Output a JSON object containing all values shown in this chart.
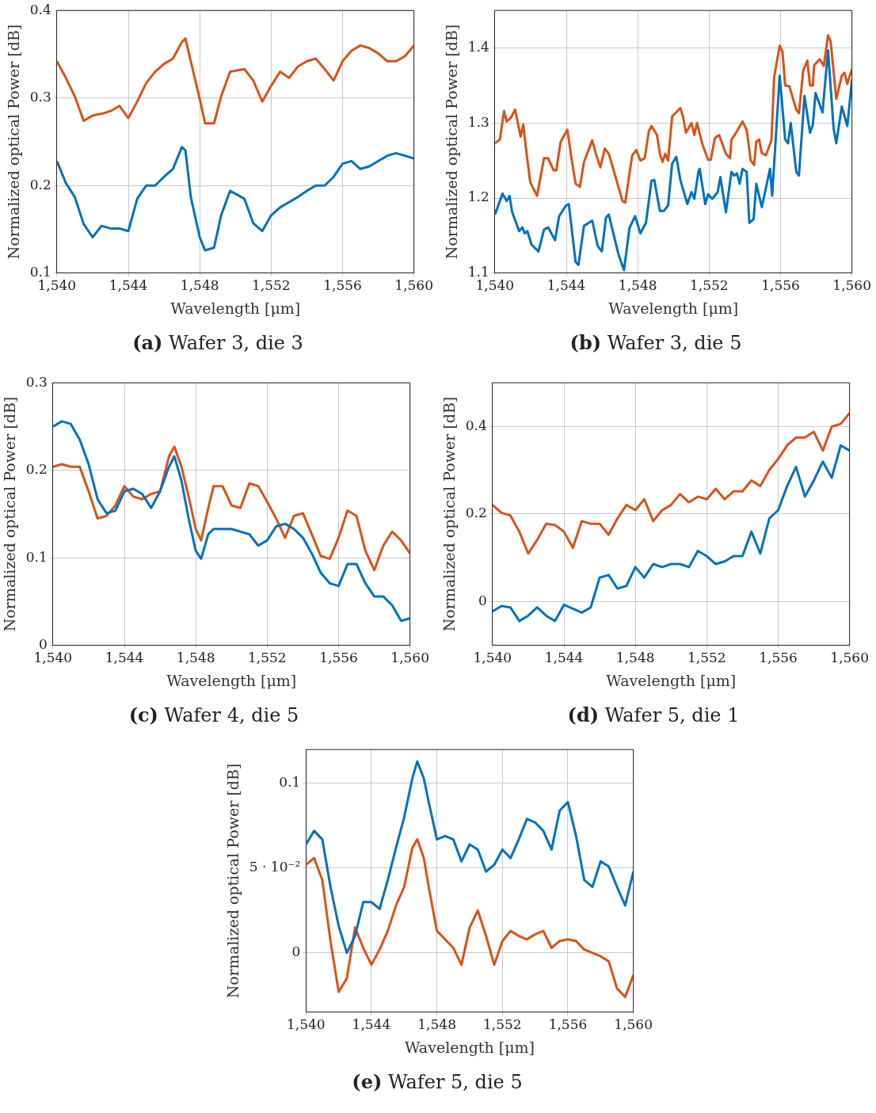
{
  "chart_data": [
    {
      "type": "line",
      "title": "(a) Wafer 3, die 3",
      "xlabel": "Wavelength [μm]",
      "ylabel": "Normalized optical Power [dB]",
      "grid": true,
      "x": [
        1540,
        1540.5,
        1541,
        1541.5,
        1542,
        1542.5,
        1543,
        1543.5,
        1544,
        1544.5,
        1545,
        1545.5,
        1546,
        1546.5,
        1547,
        1547.2,
        1547.5,
        1548,
        1548.3,
        1548.8,
        1549.2,
        1549.7,
        1550.5,
        1551,
        1551.5,
        1552,
        1552.5,
        1553,
        1553.5,
        1554,
        1554.5,
        1555,
        1555.5,
        1556,
        1556.5,
        1557,
        1557.5,
        1558,
        1558.5,
        1559,
        1559.5,
        1560
      ],
      "xlim": [
        1540,
        1560
      ],
      "xticks": [
        {
          "value": 1540,
          "label": "1,540"
        },
        {
          "value": 1544,
          "label": "1,544"
        },
        {
          "value": 1548,
          "label": "1,548"
        },
        {
          "value": 1552,
          "label": "1,552"
        },
        {
          "value": 1556,
          "label": "1,556"
        },
        {
          "value": 1560,
          "label": "1,560"
        }
      ],
      "ylim": [
        0.1,
        0.4
      ],
      "yticks": [
        0.1,
        0.2,
        0.3,
        0.4
      ],
      "series": [
        {
          "color": "#d95319",
          "values": [
            0.342,
            0.323,
            0.302,
            0.274,
            0.28,
            0.282,
            0.285,
            0.291,
            0.277,
            0.296,
            0.317,
            0.33,
            0.339,
            0.345,
            0.364,
            0.368,
            0.342,
            0.299,
            0.271,
            0.271,
            0.302,
            0.33,
            0.333,
            0.32,
            0.296,
            0.314,
            0.33,
            0.323,
            0.336,
            0.342,
            0.345,
            0.333,
            0.32,
            0.342,
            0.354,
            0.36,
            0.357,
            0.351,
            0.342,
            0.342,
            0.348,
            0.36
          ]
        },
        {
          "color": "#0072bd",
          "values": [
            0.228,
            0.203,
            0.187,
            0.156,
            0.141,
            0.154,
            0.151,
            0.151,
            0.148,
            0.185,
            0.2,
            0.2,
            0.21,
            0.219,
            0.244,
            0.24,
            0.187,
            0.141,
            0.126,
            0.129,
            0.166,
            0.194,
            0.185,
            0.157,
            0.148,
            0.166,
            0.175,
            0.181,
            0.187,
            0.194,
            0.2,
            0.2,
            0.21,
            0.225,
            0.228,
            0.219,
            0.222,
            0.228,
            0.234,
            0.237,
            0.234,
            0.231
          ]
        }
      ]
    },
    {
      "type": "line",
      "title": "(b) Wafer 3, die 5",
      "xlabel": "Wavelength [μm]",
      "ylabel": "Normalized optical Power [dB]",
      "grid": true,
      "xlim": [
        1540,
        1560
      ],
      "xticks": [
        {
          "value": 1540,
          "label": "1,540"
        },
        {
          "value": 1544,
          "label": "1,544"
        },
        {
          "value": 1548,
          "label": "1,548"
        },
        {
          "value": 1552,
          "label": "1,552"
        },
        {
          "value": 1556,
          "label": "1,556"
        },
        {
          "value": 1560,
          "label": "1,560"
        }
      ],
      "ylim": [
        1.1,
        1.45
      ],
      "yticks": [
        1.1,
        1.2,
        1.3,
        1.4
      ],
      "series": [
        {
          "color": "#d95319",
          "x": [
            1540,
            1540.28,
            1540.51,
            1540.66,
            1540.9,
            1541.13,
            1541.44,
            1541.59,
            1541.75,
            1541.98,
            1542.36,
            1542.75,
            1542.98,
            1543.29,
            1543.44,
            1543.68,
            1544.06,
            1544.29,
            1544.52,
            1544.76,
            1544.99,
            1545.45,
            1545.68,
            1545.91,
            1546.15,
            1546.38,
            1546.76,
            1547.15,
            1547.3,
            1547.69,
            1547.92,
            1548.15,
            1548.39,
            1548.62,
            1548.77,
            1549.08,
            1549.24,
            1549.39,
            1549.54,
            1549.7,
            1549.93,
            1550.39,
            1550.55,
            1550.7,
            1551.01,
            1551.17,
            1551.32,
            1551.63,
            1551.94,
            1552.09,
            1552.32,
            1552.56,
            1552.94,
            1553.17,
            1553.25,
            1553.48,
            1553.87,
            1554.1,
            1554.33,
            1554.52,
            1554.64,
            1554.8,
            1554.95,
            1555.18,
            1555.49,
            1555.64,
            1555.95,
            1556.11,
            1556.26,
            1556.49,
            1556.88,
            1557.03,
            1557.27,
            1557.5,
            1557.65,
            1557.81,
            1557.88,
            1558.19,
            1558.42,
            1558.66,
            1558.81,
            1559.12,
            1559.43,
            1559.58,
            1559.74,
            1560
          ],
          "values": [
            1.273,
            1.278,
            1.316,
            1.302,
            1.307,
            1.318,
            1.282,
            1.298,
            1.264,
            1.221,
            1.203,
            1.253,
            1.253,
            1.237,
            1.237,
            1.275,
            1.291,
            1.253,
            1.219,
            1.215,
            1.248,
            1.277,
            1.257,
            1.241,
            1.266,
            1.259,
            1.228,
            1.196,
            1.194,
            1.257,
            1.264,
            1.25,
            1.253,
            1.289,
            1.296,
            1.284,
            1.259,
            1.248,
            1.259,
            1.25,
            1.309,
            1.32,
            1.307,
            1.287,
            1.3,
            1.284,
            1.3,
            1.271,
            1.251,
            1.251,
            1.28,
            1.284,
            1.259,
            1.253,
            1.278,
            1.286,
            1.302,
            1.291,
            1.25,
            1.244,
            1.275,
            1.278,
            1.26,
            1.257,
            1.277,
            1.361,
            1.403,
            1.395,
            1.35,
            1.349,
            1.318,
            1.313,
            1.37,
            1.383,
            1.35,
            1.35,
            1.377,
            1.385,
            1.376,
            1.417,
            1.408,
            1.332,
            1.363,
            1.367,
            1.352,
            1.372
          ]
        },
        {
          "color": "#0072bd",
          "x": [
            1540,
            1540.43,
            1540.66,
            1540.82,
            1540.97,
            1541.36,
            1541.54,
            1541.67,
            1541.82,
            1542.05,
            1542.44,
            1542.75,
            1542.98,
            1543.37,
            1543.6,
            1543.98,
            1544.14,
            1544.52,
            1544.68,
            1544.99,
            1545.45,
            1545.76,
            1545.99,
            1546.22,
            1546.38,
            1546.92,
            1547.23,
            1547.54,
            1547.85,
            1548.15,
            1548.46,
            1548.77,
            1548.93,
            1549.24,
            1549.47,
            1549.7,
            1549.93,
            1550.16,
            1550.39,
            1550.78,
            1551.01,
            1551.17,
            1551.4,
            1551.47,
            1551.78,
            1551.94,
            1552.17,
            1552.48,
            1552.63,
            1552.94,
            1553.25,
            1553.4,
            1553.56,
            1553.71,
            1553.87,
            1554.1,
            1554.25,
            1554.49,
            1554.64,
            1554.95,
            1555.41,
            1555.53,
            1555.95,
            1556.26,
            1556.42,
            1556.57,
            1556.88,
            1557.03,
            1557.34,
            1557.65,
            1557.81,
            1557.96,
            1558.35,
            1558.66,
            1558.97,
            1559.12,
            1559.43,
            1559.74,
            1560
          ],
          "values": [
            1.178,
            1.206,
            1.196,
            1.203,
            1.181,
            1.156,
            1.161,
            1.153,
            1.156,
            1.138,
            1.129,
            1.158,
            1.161,
            1.144,
            1.176,
            1.19,
            1.192,
            1.115,
            1.111,
            1.163,
            1.17,
            1.136,
            1.129,
            1.174,
            1.178,
            1.125,
            1.104,
            1.16,
            1.176,
            1.153,
            1.167,
            1.223,
            1.224,
            1.183,
            1.183,
            1.19,
            1.246,
            1.255,
            1.224,
            1.192,
            1.208,
            1.199,
            1.235,
            1.239,
            1.192,
            1.205,
            1.199,
            1.208,
            1.228,
            1.181,
            1.235,
            1.23,
            1.233,
            1.219,
            1.239,
            1.235,
            1.167,
            1.172,
            1.219,
            1.188,
            1.239,
            1.203,
            1.363,
            1.278,
            1.273,
            1.3,
            1.235,
            1.23,
            1.336,
            1.287,
            1.298,
            1.34,
            1.314,
            1.397,
            1.293,
            1.273,
            1.322,
            1.296,
            1.358
          ]
        }
      ]
    },
    {
      "type": "line",
      "title": "(c) Wafer 4, die 5",
      "xlabel": "Wavelength [μm]",
      "ylabel": "Normalized optical Power [dB]",
      "grid": true,
      "x": [
        1540,
        1540.5,
        1541,
        1541.5,
        1542,
        1542.5,
        1543,
        1543.5,
        1544,
        1544.5,
        1545,
        1545.5,
        1546,
        1546.5,
        1546.8,
        1547.2,
        1547.6,
        1548,
        1548.3,
        1548.7,
        1549,
        1549.5,
        1550,
        1550.5,
        1551,
        1551.5,
        1552,
        1552.5,
        1553,
        1553.5,
        1554,
        1554.5,
        1555,
        1555.5,
        1556,
        1556.5,
        1557,
        1557.5,
        1558,
        1558.5,
        1559,
        1559.5,
        1560
      ],
      "xlim": [
        1540,
        1560
      ],
      "xticks": [
        {
          "value": 1540,
          "label": "1,540"
        },
        {
          "value": 1544,
          "label": "1,544"
        },
        {
          "value": 1548,
          "label": "1,548"
        },
        {
          "value": 1552,
          "label": "1,552"
        },
        {
          "value": 1556,
          "label": "1,556"
        },
        {
          "value": 1560,
          "label": "1,560"
        }
      ],
      "ylim": [
        0,
        0.3
      ],
      "yticks": [
        0,
        0.1,
        0.2,
        0.3
      ],
      "series": [
        {
          "color": "#0072bd",
          "values": [
            0.25,
            0.256,
            0.253,
            0.235,
            0.207,
            0.167,
            0.151,
            0.154,
            0.176,
            0.179,
            0.173,
            0.157,
            0.176,
            0.204,
            0.216,
            0.188,
            0.145,
            0.108,
            0.099,
            0.127,
            0.133,
            0.133,
            0.133,
            0.13,
            0.127,
            0.114,
            0.12,
            0.136,
            0.139,
            0.133,
            0.123,
            0.105,
            0.083,
            0.071,
            0.068,
            0.093,
            0.093,
            0.071,
            0.056,
            0.056,
            0.046,
            0.028,
            0.031
          ]
        },
        {
          "color": "#d95319",
          "values": [
            0.204,
            0.207,
            0.204,
            0.204,
            0.176,
            0.145,
            0.148,
            0.16,
            0.182,
            0.17,
            0.167,
            0.173,
            0.176,
            0.216,
            0.227,
            0.204,
            0.17,
            0.133,
            0.12,
            0.157,
            0.182,
            0.182,
            0.16,
            0.157,
            0.185,
            0.182,
            0.164,
            0.145,
            0.123,
            0.148,
            0.151,
            0.127,
            0.102,
            0.099,
            0.123,
            0.154,
            0.148,
            0.108,
            0.086,
            0.114,
            0.13,
            0.12,
            0.105
          ]
        }
      ]
    },
    {
      "type": "line",
      "title": "(d) Wafer 5, die 1",
      "xlabel": "Wavelength [μm]",
      "ylabel": "Normalized optical Power [dB]",
      "grid": true,
      "x": [
        1540,
        1540.5,
        1541,
        1541.5,
        1542,
        1542.5,
        1543,
        1543.5,
        1544,
        1544.5,
        1545,
        1545.5,
        1546,
        1546.5,
        1547,
        1547.5,
        1548,
        1548.5,
        1549,
        1549.5,
        1550,
        1550.5,
        1551,
        1551.5,
        1552,
        1552.5,
        1553,
        1553.5,
        1554,
        1554.5,
        1555,
        1555.5,
        1556,
        1556.5,
        1557,
        1557.5,
        1558,
        1558.5,
        1559,
        1559.5,
        1560
      ],
      "xlim": [
        1540,
        1560
      ],
      "xticks": [
        {
          "value": 1540,
          "label": "1,540"
        },
        {
          "value": 1544,
          "label": "1,544"
        },
        {
          "value": 1548,
          "label": "1,548"
        },
        {
          "value": 1552,
          "label": "1,552"
        },
        {
          "value": 1556,
          "label": "1,556"
        },
        {
          "value": 1560,
          "label": "1,560"
        }
      ],
      "ylim": [
        -0.1,
        0.5
      ],
      "yticks": [
        0,
        0.2,
        0.4
      ],
      "series": [
        {
          "color": "#d95319",
          "values": [
            0.221,
            0.203,
            0.197,
            0.16,
            0.11,
            0.141,
            0.178,
            0.175,
            0.16,
            0.123,
            0.184,
            0.178,
            0.178,
            0.153,
            0.19,
            0.221,
            0.209,
            0.234,
            0.184,
            0.209,
            0.221,
            0.246,
            0.227,
            0.24,
            0.234,
            0.258,
            0.234,
            0.252,
            0.252,
            0.277,
            0.264,
            0.301,
            0.326,
            0.357,
            0.375,
            0.375,
            0.388,
            0.345,
            0.4,
            0.406,
            0.431
          ]
        },
        {
          "color": "#0072bd",
          "values": [
            -0.022,
            -0.01,
            -0.013,
            -0.044,
            -0.032,
            -0.013,
            -0.032,
            -0.044,
            -0.007,
            -0.016,
            -0.025,
            -0.013,
            0.055,
            0.061,
            0.03,
            0.036,
            0.079,
            0.055,
            0.086,
            0.079,
            0.086,
            0.086,
            0.079,
            0.116,
            0.104,
            0.086,
            0.092,
            0.104,
            0.104,
            0.16,
            0.11,
            0.19,
            0.209,
            0.264,
            0.308,
            0.24,
            0.277,
            0.32,
            0.283,
            0.357,
            0.345
          ]
        }
      ]
    },
    {
      "type": "line",
      "title": "(e) Wafer 5, die 5",
      "xlabel": "Wavelength [μm]",
      "ylabel": "Normalized optical Power [dB]",
      "grid": true,
      "x": [
        1540,
        1540.5,
        1541,
        1541.5,
        1542,
        1542.5,
        1543,
        1543.5,
        1544,
        1544.5,
        1545,
        1545.5,
        1546,
        1546.5,
        1546.8,
        1547.2,
        1547.5,
        1548,
        1548.5,
        1549,
        1549.5,
        1550,
        1550.5,
        1551,
        1551.5,
        1552,
        1552.5,
        1553,
        1553.5,
        1554,
        1554.5,
        1555,
        1555.5,
        1556,
        1556.5,
        1557,
        1557.5,
        1558,
        1558.5,
        1559,
        1559.5,
        1560
      ],
      "xlim": [
        1540,
        1560
      ],
      "xticks": [
        {
          "value": 1540,
          "label": "1,540"
        },
        {
          "value": 1544,
          "label": "1,544"
        },
        {
          "value": 1548,
          "label": "1,548"
        },
        {
          "value": 1552,
          "label": "1,552"
        },
        {
          "value": 1556,
          "label": "1,556"
        },
        {
          "value": 1560,
          "label": "1,560"
        }
      ],
      "ylim": [
        -0.035,
        0.12
      ],
      "yticks": [
        0,
        {
          "value": 0.05,
          "label": "5 · 10⁻²"
        },
        0.1
      ],
      "series": [
        {
          "color": "#0072bd",
          "values": [
            0.064,
            0.072,
            0.067,
            0.039,
            0.016,
            0.0,
            0.01,
            0.03,
            0.03,
            0.026,
            0.043,
            0.062,
            0.08,
            0.103,
            0.113,
            0.103,
            0.089,
            0.067,
            0.069,
            0.067,
            0.054,
            0.064,
            0.061,
            0.048,
            0.052,
            0.061,
            0.056,
            0.067,
            0.079,
            0.077,
            0.072,
            0.061,
            0.084,
            0.089,
            0.069,
            0.043,
            0.039,
            0.054,
            0.051,
            0.039,
            0.028,
            0.048
          ]
        },
        {
          "color": "#d95319",
          "values": [
            0.052,
            0.056,
            0.043,
            0.007,
            -0.023,
            -0.015,
            0.015,
            0.003,
            -0.007,
            0.002,
            0.013,
            0.028,
            0.039,
            0.062,
            0.067,
            0.056,
            0.039,
            0.013,
            0.008,
            0.003,
            -0.007,
            0.015,
            0.025,
            0.01,
            -0.007,
            0.007,
            0.013,
            0.01,
            0.008,
            0.011,
            0.013,
            0.003,
            0.007,
            0.008,
            0.007,
            0.002,
            0.0,
            -0.002,
            -0.005,
            -0.021,
            -0.026,
            -0.013
          ]
        }
      ]
    }
  ]
}
